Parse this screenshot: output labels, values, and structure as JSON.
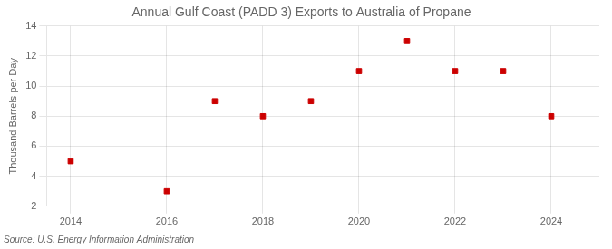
{
  "chart_data": {
    "type": "scatter",
    "title": "Annual Gulf Coast (PADD 3) Exports to Australia of Propane",
    "ylabel": "Thousand Barrels per Day",
    "annotation": "Source: U.S. Energy Information Administration",
    "x": [
      2014,
      2016,
      2017,
      2018,
      2019,
      2020,
      2021,
      2022,
      2023,
      2024
    ],
    "values": [
      5,
      3,
      9,
      8,
      9,
      11,
      13,
      11,
      11,
      8
    ],
    "color": "#cc0000",
    "marker": "square",
    "xlim": [
      2013.5,
      2025.0
    ],
    "ylim": [
      2,
      14
    ],
    "xticks": [
      2014,
      2016,
      2018,
      2020,
      2022,
      2024
    ],
    "yticks": [
      2,
      4,
      6,
      8,
      10,
      12,
      14
    ],
    "grid": true
  }
}
